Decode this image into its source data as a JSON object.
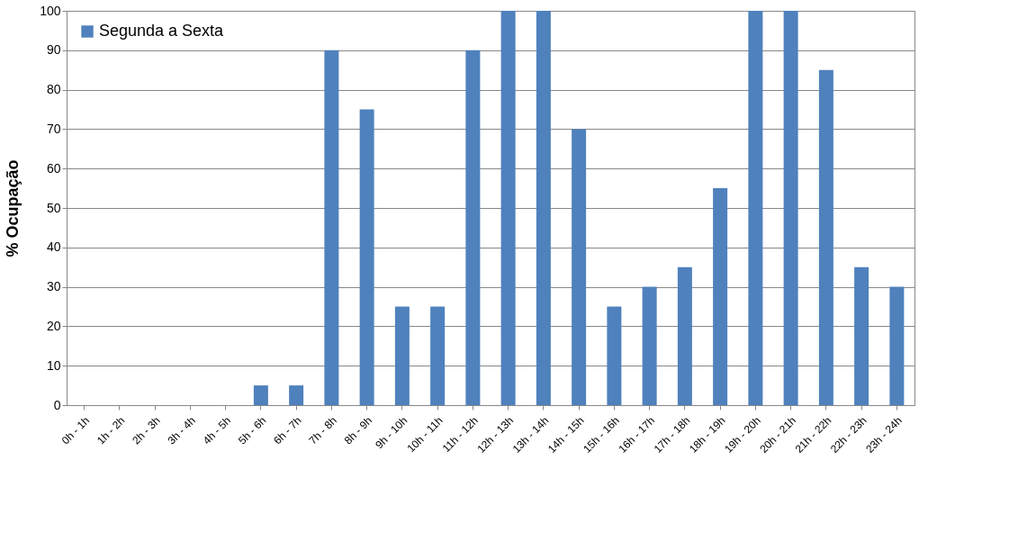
{
  "chart_data": {
    "type": "bar",
    "ylabel": "% Ocupação",
    "categories": [
      "0h - 1h",
      "1h - 2h",
      "2h - 3h",
      "3h - 4h",
      "4h - 5h",
      "5h - 6h",
      "6h - 7h",
      "7h - 8h",
      "8h - 9h",
      "9h - 10h",
      "10h - 11h",
      "11h - 12h",
      "12h - 13h",
      "13h - 14h",
      "14h - 15h",
      "15h - 16h",
      "16h - 17h",
      "17h - 18h",
      "18h - 19h",
      "19h - 20h",
      "20h - 21h",
      "21h - 22h",
      "22h - 23h",
      "23h - 24h"
    ],
    "series": [
      {
        "name": "Segunda a Sexta",
        "color": "#4f81bd",
        "values": [
          0,
          0,
          0,
          0,
          0,
          5,
          5,
          90,
          75,
          25,
          25,
          90,
          100,
          100,
          70,
          25,
          30,
          35,
          55,
          100,
          100,
          85,
          35,
          30
        ]
      }
    ],
    "ylim": [
      0,
      100
    ],
    "yticks": [
      0,
      10,
      20,
      30,
      40,
      50,
      60,
      70,
      80,
      90,
      100
    ],
    "grid": "y",
    "legend": "top left"
  }
}
